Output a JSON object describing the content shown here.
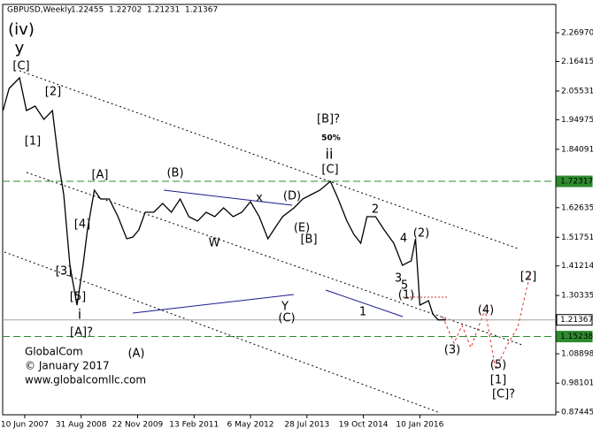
{
  "chart_data": {
    "type": "line",
    "title": "GBPUSD,Weekly",
    "ohlc": [
      1.22455,
      1.22702,
      1.21231,
      1.21367
    ],
    "x": [
      "2006-12-20",
      "2007-02-06",
      "2007-04-30",
      "2007-06-24",
      "2007-09-01",
      "2007-11-09",
      "2008-01-16",
      "2008-03-12",
      "2008-04-15",
      "2008-06-03",
      "2008-07-29",
      "2008-09-15",
      "2008-10-20",
      "2008-12-14",
      "2009-02-01",
      "2009-04-11",
      "2009-06-19",
      "2009-08-28",
      "2009-10-15",
      "2009-12-01",
      "2010-01-21",
      "2010-03-31",
      "2010-06-09",
      "2010-08-17",
      "2010-10-26",
      "2011-01-03",
      "2011-03-13",
      "2011-05-20",
      "2011-07-28",
      "2011-10-05",
      "2011-12-20",
      "2012-02-27",
      "2012-05-06",
      "2012-07-14",
      "2012-09-21",
      "2012-11-29",
      "2013-01-16",
      "2013-04-16",
      "2013-06-24",
      "2013-08-31",
      "2013-11-08",
      "2014-01-30",
      "2014-04-02",
      "2014-06-10",
      "2014-08-04",
      "2014-09-28",
      "2014-11-16",
      "2015-01-24",
      "2015-04-02",
      "2015-06-17",
      "2015-08-25",
      "2015-11-02",
      "2015-12-07",
      "2016-01-10",
      "2016-03-19",
      "2016-04-22",
      "2016-06-03",
      "2016-08-04"
    ],
    "series": [
      {
        "name": "GBPUSD",
        "color": "#000000",
        "values": [
          1.9835,
          2.0648,
          2.1039,
          1.9835,
          1.9998,
          1.951,
          1.9835,
          1.7721,
          1.6745,
          1.4144,
          1.268,
          1.4144,
          1.5445,
          1.6908,
          1.6583,
          1.6583,
          1.5933,
          1.512,
          1.5185,
          1.5445,
          1.6095,
          1.6095,
          1.6421,
          1.6095,
          1.6583,
          1.5933,
          1.577,
          1.6095,
          1.5933,
          1.6258,
          1.5933,
          1.6095,
          1.6486,
          1.5933,
          1.512,
          1.5608,
          1.5933,
          1.6258,
          1.6583,
          1.6745,
          1.6908,
          1.7234,
          1.6583,
          1.577,
          1.5283,
          1.4957,
          1.5933,
          1.5933,
          1.5445,
          1.4957,
          1.4144,
          1.4307,
          1.512,
          1.268,
          1.2843,
          1.2355,
          1.2137,
          1.2137
        ]
      }
    ],
    "xlim": [
      "2006-12-17",
      "2018-12-24"
    ],
    "xticks": [
      {
        "value": "2007-06-10",
        "label": "10 Jun 2007"
      },
      {
        "value": "2008-08-31",
        "label": "31 Aug 2008"
      },
      {
        "value": "2009-11-22",
        "label": "22 Nov 2009"
      },
      {
        "value": "2011-02-13",
        "label": "13 Feb 2011"
      },
      {
        "value": "2012-05-06",
        "label": "6 May 2012"
      },
      {
        "value": "2013-07-28",
        "label": "28 Jul 2013"
      },
      {
        "value": "2014-10-19",
        "label": "19 Oct 2014"
      },
      {
        "value": "2016-01-10",
        "label": "10 Jan 2016"
      }
    ],
    "ylim": [
      0.8647,
      2.3738
    ],
    "yticks": [
      {
        "value": 2.2697,
        "label": "2.26970"
      },
      2.16415,
      2.05531,
      1.94975,
      1.84091,
      1.62635,
      1.51751,
      1.41214,
      1.30335,
      1.08898,
      0.98101,
      0.87445
    ],
    "hlines": [
      {
        "value": 1.72317,
        "color": "#2e8b2e"
      },
      {
        "value": 1.15238,
        "color": "#2e8b2e"
      },
      {
        "value": 1.21367,
        "color": "#a0a0a0"
      }
    ],
    "annotations": [
      {
        "text": "(iv)",
        "color": "#1a1a8c"
      },
      {
        "text": "y",
        "color": "#8b1a1a"
      },
      {
        "text": "[C]",
        "color": "#2e8b2e"
      },
      {
        "text": "[2]",
        "color": "#2e8b2e"
      },
      {
        "text": "[1]",
        "color": "#2e8b2e"
      },
      {
        "text": "[A]",
        "color": "#2e8b2e"
      },
      {
        "text": "[4]",
        "color": "#2e8b2e"
      },
      {
        "text": "[3]",
        "color": "#2e8b2e"
      },
      {
        "text": "[5]",
        "color": "#2e8b2e"
      },
      {
        "text": "i",
        "color": "#8b1a1a"
      },
      {
        "text": "[A]?",
        "color": "#909090"
      },
      {
        "text": "(B)",
        "color": "#1a1a8c"
      },
      {
        "text": "(A)",
        "color": "#1a1a8c"
      },
      {
        "text": "x",
        "color": "#b22222"
      },
      {
        "text": "W",
        "color": "#b22222"
      },
      {
        "text": "Y",
        "color": "#b22222"
      },
      {
        "text": "(C)",
        "color": "#1a1a8c"
      },
      {
        "text": "(D)",
        "color": "#1a1a8c"
      },
      {
        "text": "(E)",
        "color": "#1a1a8c"
      },
      {
        "text": "[B]",
        "color": "#2e8b2e"
      },
      {
        "text": "[B]?",
        "color": "#909090"
      },
      {
        "text": "50%",
        "color": "#1a1a8c"
      },
      {
        "text": "ii",
        "color": "#8b1a1a"
      },
      {
        "text": "[C]",
        "color": "#2e8b2e"
      },
      {
        "text": "2",
        "color": "#8b1a1a"
      },
      {
        "text": "1",
        "color": "#8b1a1a"
      },
      {
        "text": "4",
        "color": "#8b1a1a"
      },
      {
        "text": "(2)",
        "color": "#1a1a8c"
      },
      {
        "text": "3",
        "color": "#8b1a1a"
      },
      {
        "text": "5",
        "color": "#8b1a1a"
      },
      {
        "text": "(1)",
        "color": "#1a1a8c"
      },
      {
        "text": "(3)",
        "color": "#1a1a8c"
      },
      {
        "text": "(4)",
        "color": "#1a1a8c"
      },
      {
        "text": "(5)",
        "color": "#1a1a8c"
      },
      {
        "text": "[1]",
        "color": "#2e8b2e"
      },
      {
        "text": "[C]?",
        "color": "#909090"
      },
      {
        "text": "[2]",
        "color": "#2e8b2e"
      }
    ],
    "watermark": [
      "GlobalCom",
      "© January 2017",
      "www.globalcomllc.com"
    ]
  }
}
